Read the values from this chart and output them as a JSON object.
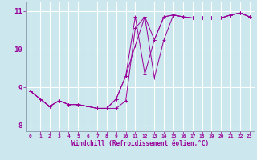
{
  "xlabel": "Windchill (Refroidissement éolien,°C)",
  "background_color": "#cce8ee",
  "line_color": "#990099",
  "grid_color": "#aaddcc",
  "xlim": [
    -0.5,
    23.5
  ],
  "ylim": [
    7.85,
    11.25
  ],
  "yticks": [
    8,
    9,
    10,
    11
  ],
  "xticks": [
    0,
    1,
    2,
    3,
    4,
    5,
    6,
    7,
    8,
    9,
    10,
    11,
    12,
    13,
    14,
    15,
    16,
    17,
    18,
    19,
    20,
    21,
    22,
    23
  ],
  "series": [
    [
      8.9,
      8.7,
      8.5,
      8.65,
      8.55,
      8.55,
      8.5,
      8.45,
      8.45,
      8.45,
      8.65,
      10.55,
      10.85,
      9.25,
      10.25,
      10.9,
      10.85,
      10.82,
      10.82,
      10.82,
      10.82,
      10.9,
      10.95,
      10.85
    ],
    [
      8.9,
      8.7,
      8.5,
      8.65,
      8.55,
      8.55,
      8.5,
      8.45,
      8.45,
      8.7,
      9.3,
      10.85,
      9.35,
      10.25,
      10.85,
      10.9,
      10.85,
      10.82,
      10.82,
      10.82,
      10.82,
      10.9,
      10.95,
      10.85
    ],
    [
      8.9,
      8.7,
      8.5,
      8.65,
      8.55,
      8.55,
      8.5,
      8.45,
      8.45,
      8.7,
      9.3,
      10.1,
      10.85,
      10.25,
      10.85,
      10.9,
      10.85,
      10.82,
      10.82,
      10.82,
      10.82,
      10.9,
      10.95,
      10.85
    ]
  ],
  "xlabel_fontsize": 5.5,
  "ytick_fontsize": 6.5,
  "xtick_fontsize": 4.5
}
